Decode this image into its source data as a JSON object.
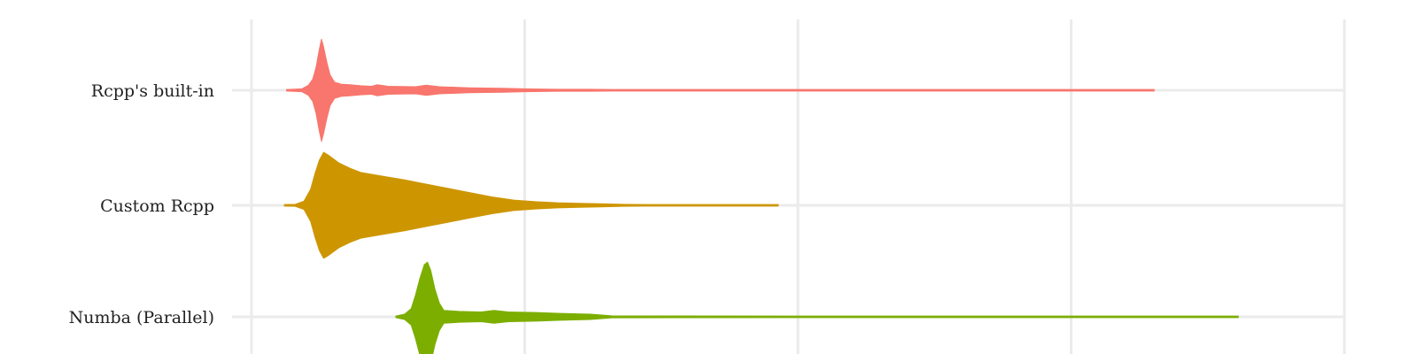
{
  "chart_data": {
    "type": "violin",
    "orientation": "horizontal",
    "title": "",
    "xlabel": "",
    "ylabel": "",
    "grid": true,
    "legend": "none",
    "x_axis": {
      "range": [
        0,
        1
      ],
      "gridlines": [
        0,
        0.25,
        0.5,
        0.75,
        1.0
      ],
      "tick_labels_visible": false
    },
    "categories": [
      "Rcpp's built-in",
      "Custom Rcpp",
      "Numba (Parallel)"
    ],
    "series": [
      {
        "category": "Rcpp's built-in",
        "color": "#F8766D",
        "min": 0.032,
        "max": 0.826,
        "density": [
          [
            0.032,
            0.01
          ],
          [
            0.046,
            0.03
          ],
          [
            0.052,
            0.1
          ],
          [
            0.056,
            0.22
          ],
          [
            0.059,
            0.45
          ],
          [
            0.062,
            0.8
          ],
          [
            0.064,
            1.0
          ],
          [
            0.066,
            0.85
          ],
          [
            0.069,
            0.55
          ],
          [
            0.072,
            0.3
          ],
          [
            0.076,
            0.16
          ],
          [
            0.082,
            0.12
          ],
          [
            0.09,
            0.11
          ],
          [
            0.1,
            0.09
          ],
          [
            0.11,
            0.08
          ],
          [
            0.115,
            0.11
          ],
          [
            0.125,
            0.08
          ],
          [
            0.15,
            0.07
          ],
          [
            0.16,
            0.1
          ],
          [
            0.172,
            0.07
          ],
          [
            0.2,
            0.05
          ],
          [
            0.23,
            0.04
          ],
          [
            0.25,
            0.03
          ],
          [
            0.28,
            0.02
          ],
          [
            0.31,
            0.02
          ],
          [
            0.33,
            0.015
          ],
          [
            0.4,
            0.01
          ],
          [
            0.6,
            0.01
          ],
          [
            0.826,
            0.01
          ]
        ]
      },
      {
        "category": "Custom Rcpp",
        "color": "#CD9600",
        "min": 0.03,
        "max": 0.482,
        "density": [
          [
            0.03,
            0.01
          ],
          [
            0.04,
            0.02
          ],
          [
            0.048,
            0.08
          ],
          [
            0.054,
            0.3
          ],
          [
            0.058,
            0.6
          ],
          [
            0.062,
            0.85
          ],
          [
            0.066,
            1.0
          ],
          [
            0.07,
            0.95
          ],
          [
            0.08,
            0.8
          ],
          [
            0.09,
            0.7
          ],
          [
            0.1,
            0.62
          ],
          [
            0.12,
            0.55
          ],
          [
            0.14,
            0.48
          ],
          [
            0.16,
            0.4
          ],
          [
            0.18,
            0.32
          ],
          [
            0.2,
            0.24
          ],
          [
            0.22,
            0.16
          ],
          [
            0.24,
            0.1
          ],
          [
            0.26,
            0.07
          ],
          [
            0.28,
            0.05
          ],
          [
            0.3,
            0.04
          ],
          [
            0.32,
            0.03
          ],
          [
            0.34,
            0.02
          ],
          [
            0.36,
            0.01
          ],
          [
            0.482,
            0.01
          ]
        ]
      },
      {
        "category": "Numba (Parallel)",
        "color": "#7CAE00",
        "min": 0.132,
        "max": 0.903,
        "density": [
          [
            0.132,
            0.01
          ],
          [
            0.14,
            0.05
          ],
          [
            0.146,
            0.15
          ],
          [
            0.15,
            0.4
          ],
          [
            0.154,
            0.7
          ],
          [
            0.158,
            0.95
          ],
          [
            0.161,
            1.0
          ],
          [
            0.164,
            0.85
          ],
          [
            0.168,
            0.5
          ],
          [
            0.172,
            0.25
          ],
          [
            0.176,
            0.12
          ],
          [
            0.19,
            0.1
          ],
          [
            0.21,
            0.09
          ],
          [
            0.222,
            0.12
          ],
          [
            0.235,
            0.09
          ],
          [
            0.26,
            0.08
          ],
          [
            0.29,
            0.06
          ],
          [
            0.31,
            0.05
          ],
          [
            0.33,
            0.02
          ],
          [
            0.5,
            0.01
          ],
          [
            0.903,
            0.01
          ]
        ]
      }
    ]
  }
}
